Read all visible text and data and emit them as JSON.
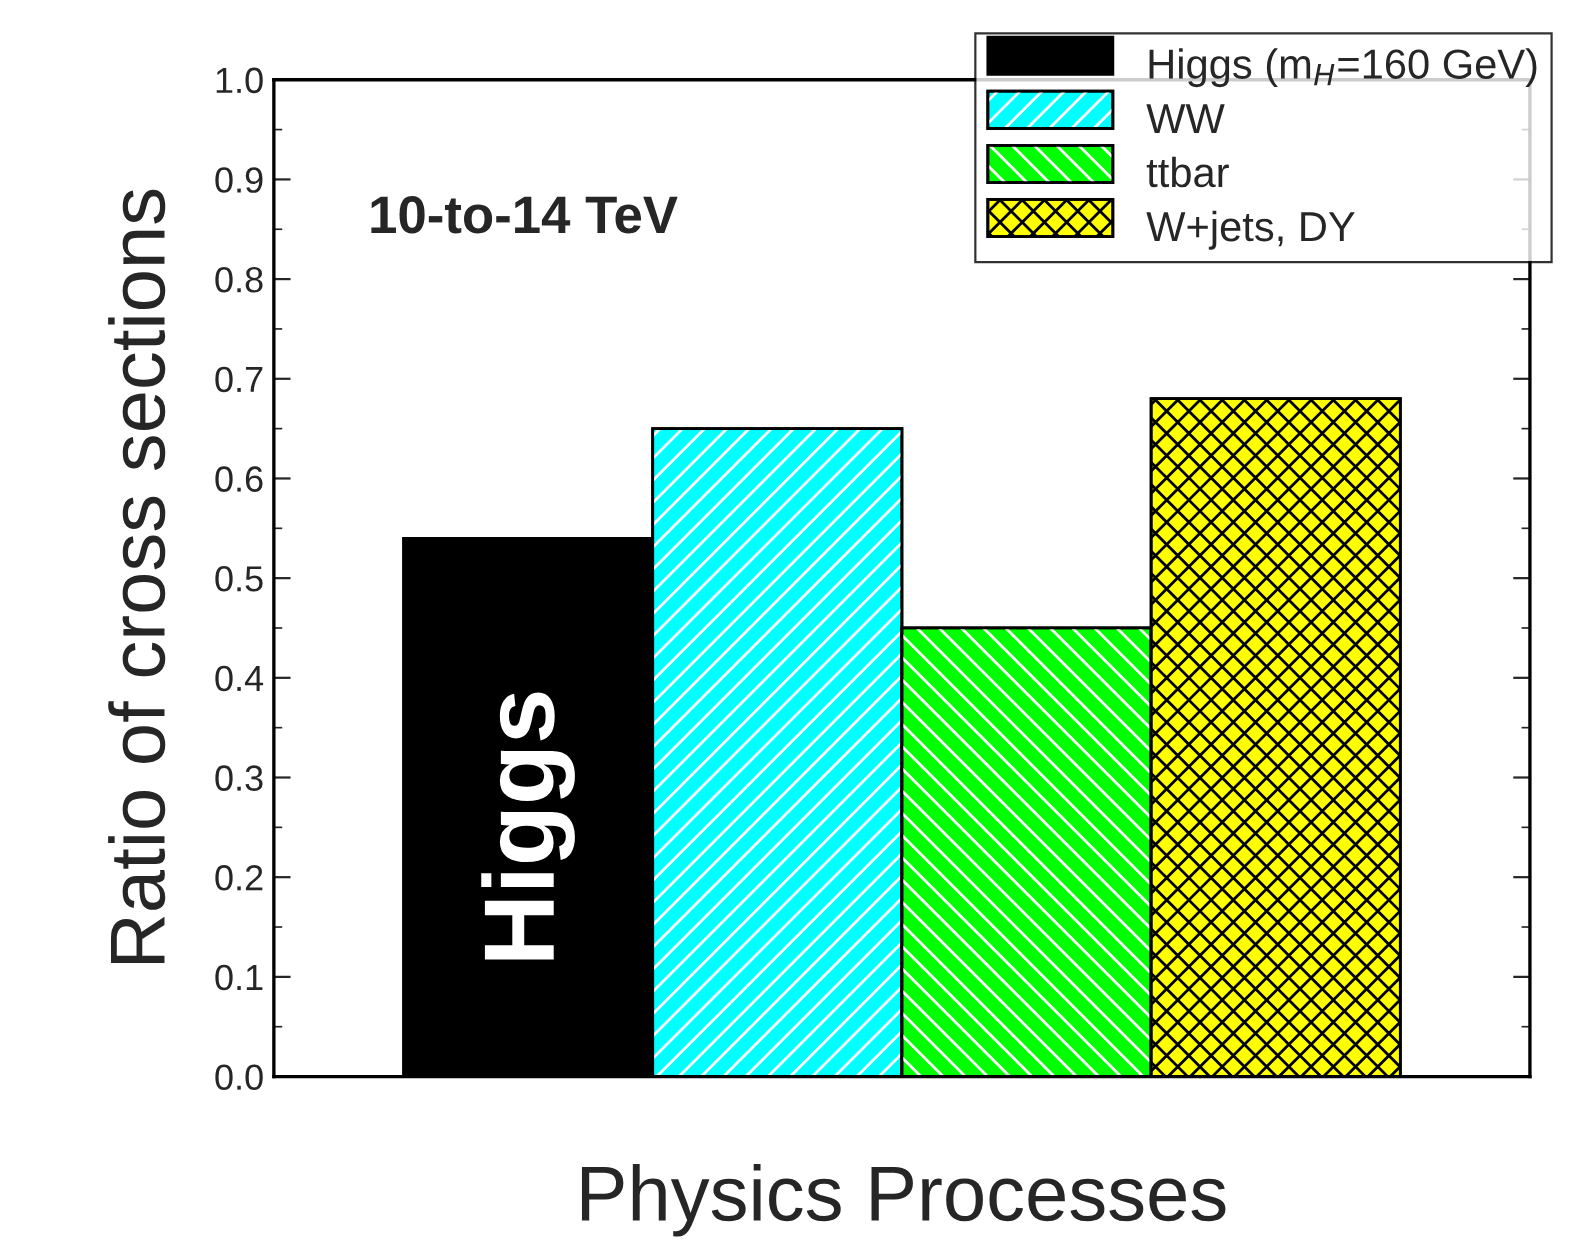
{
  "chart_data": {
    "type": "bar",
    "xlabel": "Physics Processes",
    "ylabel": "Ratio of cross sections",
    "categories": [
      null,
      null,
      null,
      null
    ],
    "series": [
      {
        "name": "Higgs (m$_{H}$=160 GeV)",
        "color": "#000000",
        "values": [
          0.54,
          null,
          null,
          null
        ]
      },
      {
        "name": "WW",
        "color": "#00ffff",
        "values": [
          null,
          0.65,
          null,
          null
        ]
      },
      {
        "name": "ttbar",
        "color": "#00ff00",
        "values": [
          null,
          null,
          0.45,
          null
        ]
      },
      {
        "name": "W+jets, DY",
        "color": "#ffff00",
        "values": [
          null,
          null,
          null,
          0.68
        ]
      }
    ],
    "ylim": [
      0,
      1.0
    ],
    "yticks": [
      {
        "value": 0.0,
        "label": "0.0"
      },
      {
        "value": 0.1,
        "label": "0.1"
      },
      {
        "value": 0.2,
        "label": "0.2"
      },
      {
        "value": 0.3,
        "label": "0.3"
      },
      {
        "value": 0.4,
        "label": "0.4"
      },
      {
        "value": 0.5,
        "label": "0.5"
      },
      {
        "value": 0.6,
        "label": "0.6"
      },
      {
        "value": 0.7,
        "label": "0.7"
      },
      {
        "value": 0.8,
        "label": "0.8"
      },
      {
        "value": 0.9,
        "label": "0.9"
      },
      {
        "value": 1.0,
        "label": "1.0"
      }
    ],
    "annotations": [
      "10-to-14 TeV",
      "Higgs"
    ],
    "legend": "top right",
    "grid": false
  }
}
